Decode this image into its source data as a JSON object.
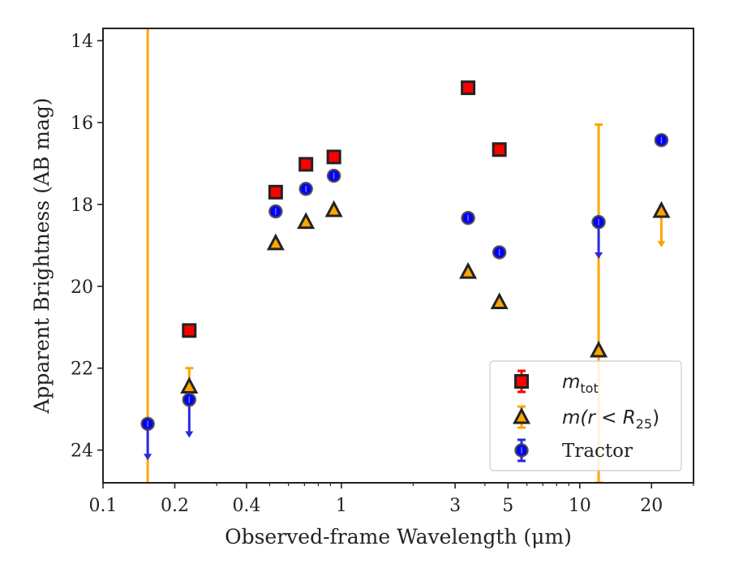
{
  "chart_data": {
    "type": "scatter",
    "xlabel": "Observed-frame Wavelength (μm)",
    "ylabel": "Apparent Brightness (AB mag)",
    "xscale": "log",
    "xlim": [
      0.1,
      30
    ],
    "ylim": [
      24.8,
      13.7
    ],
    "y_inverted": true,
    "xticks": [
      0.1,
      0.2,
      0.4,
      1,
      3,
      5,
      10,
      20
    ],
    "xtick_labels": [
      "0.1",
      "0.2",
      "0.4",
      "1",
      "3",
      "5",
      "10",
      "20"
    ],
    "yticks": [
      14,
      16,
      18,
      20,
      22,
      24
    ],
    "ytick_labels": [
      "14",
      "16",
      "18",
      "20",
      "22",
      "24"
    ],
    "grid": false,
    "legend_position": "bottom-right",
    "series": [
      {
        "name": "m_tot",
        "marker": "square",
        "color": "#ff0000",
        "edgecolor": "#222222",
        "points": [
          {
            "x": 0.23,
            "y": 21.08
          },
          {
            "x": 0.53,
            "y": 17.7
          },
          {
            "x": 0.71,
            "y": 17.02
          },
          {
            "x": 0.93,
            "y": 16.84
          },
          {
            "x": 3.4,
            "y": 15.15
          },
          {
            "x": 4.6,
            "y": 16.66
          }
        ]
      },
      {
        "name": "m(r < R25)",
        "marker": "triangle",
        "color": "#ffa500",
        "edgecolor": "#222222",
        "points": [
          {
            "x": 0.154,
            "y": null,
            "errorbar": [
              13.7,
              24.8
            ]
          },
          {
            "x": 0.23,
            "y": 22.45,
            "errorbar": [
              22.0,
              22.9
            ]
          },
          {
            "x": 0.53,
            "y": 18.95
          },
          {
            "x": 0.71,
            "y": 18.43
          },
          {
            "x": 0.93,
            "y": 18.14
          },
          {
            "x": 3.4,
            "y": 19.65
          },
          {
            "x": 4.6,
            "y": 20.39
          },
          {
            "x": 12.0,
            "y": 21.57,
            "errorbar": [
              16.05,
              24.8
            ]
          },
          {
            "x": 22.0,
            "y": 18.16,
            "upper_limit_to": 19.05
          }
        ]
      },
      {
        "name": "Tractor",
        "marker": "circle",
        "color": "#0000ff",
        "edgecolor": "#444444",
        "points": [
          {
            "x": 0.154,
            "y": 23.36,
            "upper_limit_to": 24.25
          },
          {
            "x": 0.23,
            "y": 22.77,
            "upper_limit_to": 23.7
          },
          {
            "x": 0.53,
            "y": 18.17
          },
          {
            "x": 0.71,
            "y": 17.62
          },
          {
            "x": 0.93,
            "y": 17.3
          },
          {
            "x": 3.4,
            "y": 18.33
          },
          {
            "x": 4.6,
            "y": 19.17
          },
          {
            "x": 12.0,
            "y": 18.43,
            "upper_limit_to": 19.33
          },
          {
            "x": 22.0,
            "y": 16.43
          }
        ]
      }
    ],
    "legend": {
      "entries": [
        {
          "sym": "m",
          "sub": "tot"
        },
        {
          "sym": "m(r < R",
          "sub": "25",
          "tail": ")"
        },
        {
          "label": "Tractor"
        }
      ]
    }
  }
}
